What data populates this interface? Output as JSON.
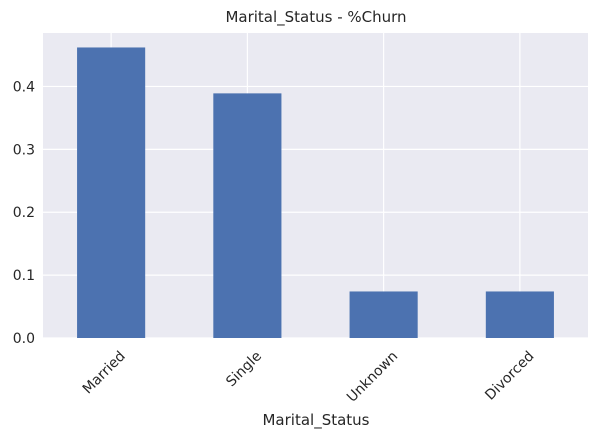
{
  "chart_data": {
    "type": "bar",
    "title": "Marital_Status - %Churn",
    "xlabel": "Marital_Status",
    "ylabel": "",
    "categories": [
      "Married",
      "Single",
      "Unknown",
      "Divorced"
    ],
    "values": [
      0.462,
      0.389,
      0.074,
      0.074
    ],
    "ylim": [
      0,
      0.485
    ],
    "yticks": [
      0.0,
      0.1,
      0.2,
      0.3,
      0.4
    ],
    "ytick_labels": [
      "0.0",
      "0.1",
      "0.2",
      "0.3",
      "0.4"
    ],
    "grid": true,
    "bar_color": "#4c72b0",
    "background_color": "#eaeaf2",
    "grid_color": "#ffffff"
  }
}
